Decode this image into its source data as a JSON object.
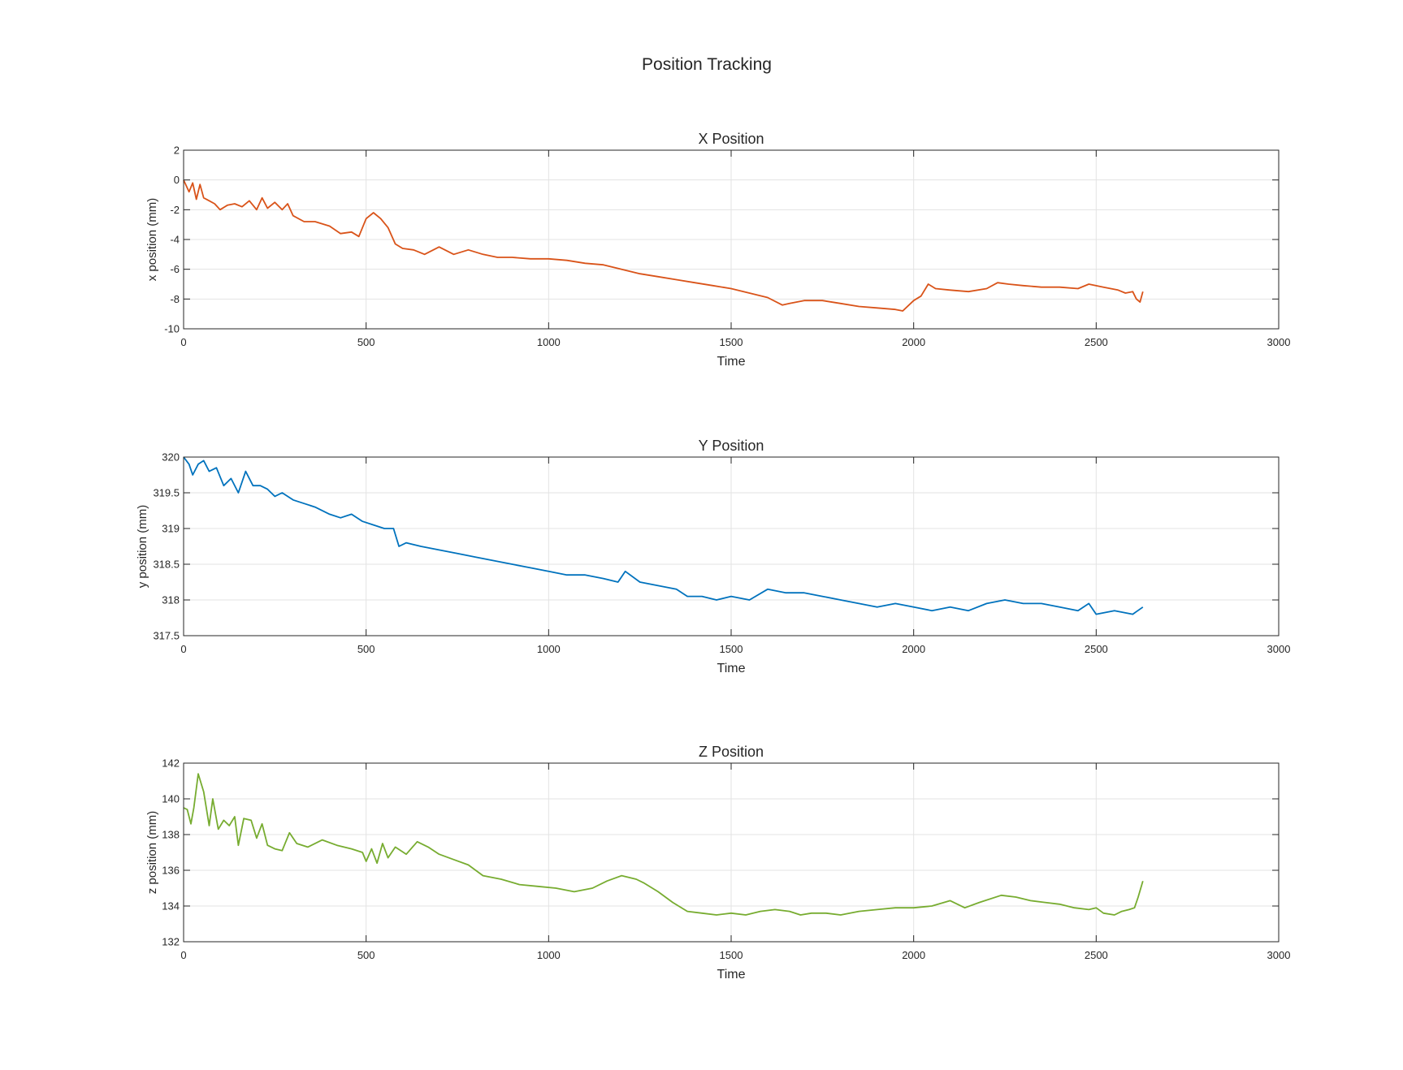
{
  "figure": {
    "title": "Position Tracking"
  },
  "chart_data": [
    {
      "type": "line",
      "title": "X Position",
      "xlabel": "Time",
      "ylabel": "x position (mm)",
      "xlim": [
        0,
        3000
      ],
      "ylim": [
        -10,
        2
      ],
      "xticks": [
        0,
        500,
        1000,
        1500,
        2000,
        2500,
        3000
      ],
      "yticks": [
        -10,
        -8,
        -6,
        -4,
        -2,
        0,
        2
      ],
      "grid": true,
      "color": "#D95319",
      "series": [
        {
          "x": [
            0,
            15,
            25,
            35,
            45,
            55,
            70,
            85,
            100,
            120,
            140,
            160,
            180,
            200,
            215,
            230,
            250,
            270,
            285,
            300,
            330,
            360,
            400,
            430,
            460,
            480,
            500,
            520,
            540,
            560,
            580,
            600,
            630,
            660,
            700,
            740,
            780,
            820,
            860,
            900,
            950,
            1000,
            1050,
            1100,
            1150,
            1200,
            1250,
            1300,
            1350,
            1400,
            1450,
            1500,
            1550,
            1600,
            1640,
            1660,
            1700,
            1750,
            1800,
            1850,
            1900,
            1950,
            1970,
            2000,
            2020,
            2040,
            2060,
            2100,
            2150,
            2200,
            2230,
            2260,
            2300,
            2350,
            2400,
            2450,
            2480,
            2520,
            2560,
            2580,
            2600,
            2610,
            2620,
            2628
          ],
          "y": [
            0,
            -0.8,
            -0.2,
            -1.3,
            -0.3,
            -1.2,
            -1.4,
            -1.6,
            -2.0,
            -1.7,
            -1.6,
            -1.8,
            -1.4,
            -2.0,
            -1.2,
            -1.9,
            -1.5,
            -2.0,
            -1.6,
            -2.4,
            -2.8,
            -2.8,
            -3.1,
            -3.6,
            -3.5,
            -3.8,
            -2.6,
            -2.2,
            -2.6,
            -3.2,
            -4.3,
            -4.6,
            -4.7,
            -5.0,
            -4.5,
            -5.0,
            -4.7,
            -5.0,
            -5.2,
            -5.2,
            -5.3,
            -5.3,
            -5.4,
            -5.6,
            -5.7,
            -6.0,
            -6.3,
            -6.5,
            -6.7,
            -6.9,
            -7.1,
            -7.3,
            -7.6,
            -7.9,
            -8.4,
            -8.3,
            -8.1,
            -8.1,
            -8.3,
            -8.5,
            -8.6,
            -8.7,
            -8.8,
            -8.1,
            -7.8,
            -7.0,
            -7.3,
            -7.4,
            -7.5,
            -7.3,
            -6.9,
            -7.0,
            -7.1,
            -7.2,
            -7.2,
            -7.3,
            -7.0,
            -7.2,
            -7.4,
            -7.6,
            -7.5,
            -8.0,
            -8.2,
            -7.5
          ]
        }
      ]
    },
    {
      "type": "line",
      "title": "Y Position",
      "xlabel": "Time",
      "ylabel": "y position (mm)",
      "xlim": [
        0,
        3000
      ],
      "ylim": [
        317.5,
        320
      ],
      "xticks": [
        0,
        500,
        1000,
        1500,
        2000,
        2500,
        3000
      ],
      "yticks": [
        317.5,
        318,
        318.5,
        319,
        319.5,
        320
      ],
      "grid": true,
      "color": "#0072BD",
      "series": [
        {
          "x": [
            0,
            15,
            25,
            40,
            55,
            70,
            90,
            110,
            130,
            150,
            170,
            190,
            210,
            230,
            250,
            270,
            300,
            330,
            360,
            400,
            430,
            460,
            490,
            520,
            550,
            575,
            590,
            610,
            650,
            700,
            750,
            800,
            850,
            900,
            950,
            1000,
            1050,
            1100,
            1150,
            1190,
            1210,
            1250,
            1300,
            1350,
            1380,
            1420,
            1460,
            1500,
            1550,
            1600,
            1650,
            1700,
            1750,
            1800,
            1850,
            1900,
            1950,
            2000,
            2050,
            2100,
            2150,
            2200,
            2250,
            2300,
            2350,
            2400,
            2450,
            2480,
            2500,
            2550,
            2600,
            2628
          ],
          "y": [
            320,
            319.9,
            319.75,
            319.9,
            319.95,
            319.8,
            319.85,
            319.6,
            319.7,
            319.5,
            319.8,
            319.6,
            319.6,
            319.55,
            319.45,
            319.5,
            319.4,
            319.35,
            319.3,
            319.2,
            319.15,
            319.2,
            319.1,
            319.05,
            319.0,
            319.0,
            318.75,
            318.8,
            318.75,
            318.7,
            318.65,
            318.6,
            318.55,
            318.5,
            318.45,
            318.4,
            318.35,
            318.35,
            318.3,
            318.25,
            318.4,
            318.25,
            318.2,
            318.15,
            318.05,
            318.05,
            318.0,
            318.05,
            318.0,
            318.15,
            318.1,
            318.1,
            318.05,
            318.0,
            317.95,
            317.9,
            317.95,
            317.9,
            317.85,
            317.9,
            317.85,
            317.95,
            318.0,
            317.95,
            317.95,
            317.9,
            317.85,
            317.95,
            317.8,
            317.85,
            317.8,
            317.9
          ]
        }
      ]
    },
    {
      "type": "line",
      "title": "Z Position",
      "xlabel": "Time",
      "ylabel": "z position (mm)",
      "xlim": [
        0,
        3000
      ],
      "ylim": [
        132,
        142
      ],
      "xticks": [
        0,
        500,
        1000,
        1500,
        2000,
        2500,
        3000
      ],
      "yticks": [
        132,
        134,
        136,
        138,
        140,
        142
      ],
      "grid": true,
      "color": "#77AC30",
      "series": [
        {
          "x": [
            0,
            10,
            20,
            28,
            40,
            55,
            70,
            80,
            95,
            110,
            125,
            140,
            150,
            165,
            185,
            200,
            215,
            230,
            250,
            270,
            290,
            310,
            340,
            380,
            420,
            460,
            490,
            500,
            515,
            530,
            545,
            560,
            580,
            610,
            640,
            670,
            700,
            740,
            780,
            820,
            870,
            920,
            970,
            1020,
            1070,
            1120,
            1160,
            1200,
            1240,
            1260,
            1300,
            1340,
            1380,
            1420,
            1460,
            1500,
            1540,
            1580,
            1620,
            1660,
            1690,
            1720,
            1760,
            1800,
            1850,
            1900,
            1950,
            2000,
            2050,
            2100,
            2140,
            2180,
            2240,
            2280,
            2320,
            2360,
            2400,
            2440,
            2480,
            2500,
            2520,
            2550,
            2570,
            2590,
            2605,
            2615,
            2628
          ],
          "y": [
            139.5,
            139.4,
            138.6,
            139.5,
            141.4,
            140.4,
            138.5,
            140.0,
            138.3,
            138.8,
            138.5,
            139.0,
            137.4,
            138.9,
            138.8,
            137.8,
            138.6,
            137.4,
            137.2,
            137.1,
            138.1,
            137.5,
            137.3,
            137.7,
            137.4,
            137.2,
            137.0,
            136.5,
            137.2,
            136.4,
            137.5,
            136.7,
            137.3,
            136.9,
            137.6,
            137.3,
            136.9,
            136.6,
            136.3,
            135.7,
            135.5,
            135.2,
            135.1,
            135.0,
            134.8,
            135.0,
            135.4,
            135.7,
            135.5,
            135.3,
            134.8,
            134.2,
            133.7,
            133.6,
            133.5,
            133.6,
            133.5,
            133.7,
            133.8,
            133.7,
            133.5,
            133.6,
            133.6,
            133.5,
            133.7,
            133.8,
            133.9,
            133.9,
            134.0,
            134.3,
            133.9,
            134.2,
            134.6,
            134.5,
            134.3,
            134.2,
            134.1,
            133.9,
            133.8,
            133.9,
            133.6,
            133.5,
            133.7,
            133.8,
            133.9,
            134.5,
            135.4
          ]
        }
      ]
    }
  ]
}
